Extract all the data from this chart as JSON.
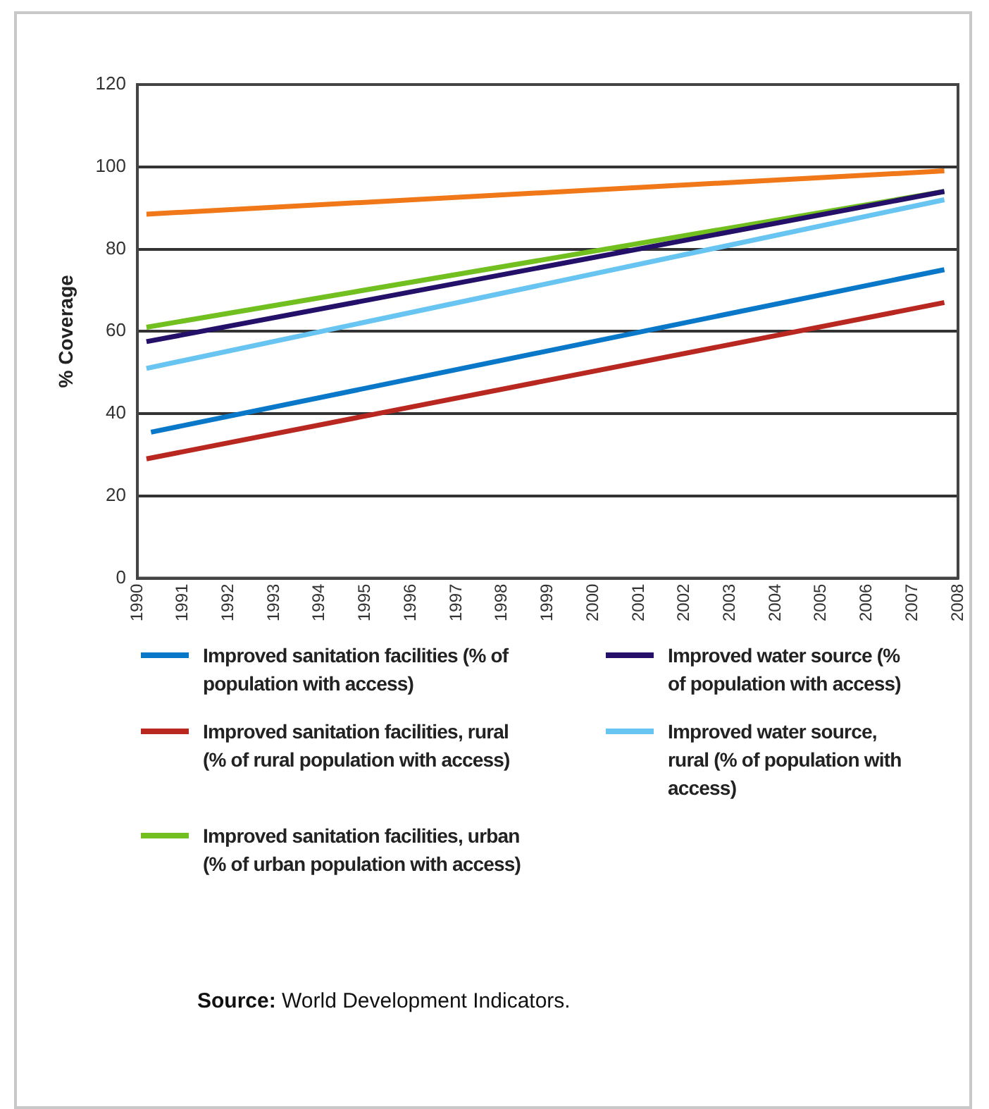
{
  "chart_data": {
    "type": "line",
    "ylabel": "% Coverage",
    "xlim": [
      1990,
      2008
    ],
    "xticks": [
      1990,
      1991,
      1992,
      1993,
      1994,
      1995,
      1996,
      1997,
      1998,
      1999,
      2000,
      2001,
      2002,
      2003,
      2004,
      2005,
      2006,
      2007,
      2008
    ],
    "ylim": [
      0,
      120
    ],
    "yticks": [
      0,
      20,
      40,
      60,
      80,
      100,
      120
    ],
    "grid": "y",
    "legend": "bottom",
    "marker": "none",
    "line_style": "solid",
    "x": [
      1990.2,
      2007.7
    ],
    "series": [
      {
        "name": "Improved sanitation facilities (% of population with access)",
        "color": "#0a78c8",
        "values": [
          35.5,
          75
        ],
        "x": [
          1990.3,
          2007.7
        ]
      },
      {
        "name": "Improved sanitation facilities, rural (% of rural population with access)",
        "color": "#b82820",
        "values": [
          29,
          67
        ]
      },
      {
        "name": "Improved sanitation facilities, urban (% of urban population with access)",
        "color": "#72c020",
        "values": [
          61,
          94
        ]
      },
      {
        "name": "Improved water source (% of population with access)",
        "color": "#241068",
        "values": [
          57.5,
          94
        ]
      },
      {
        "name": "Improved water source, rural (% of population with access)",
        "color": "#68c4f0",
        "values": [
          51,
          92
        ]
      },
      {
        "color": "#f07818",
        "values": [
          88.5,
          99
        ]
      }
    ],
    "annotations": [
      "Source: World Development Indicators."
    ]
  }
}
